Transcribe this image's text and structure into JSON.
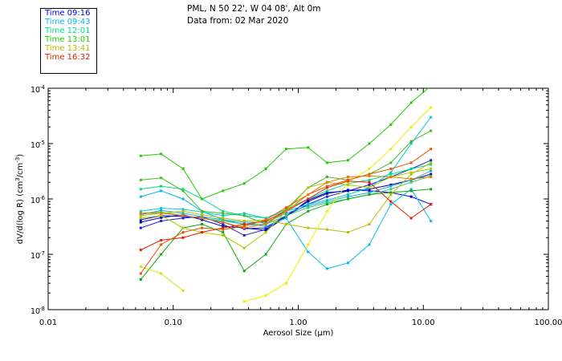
{
  "header": {
    "station": "PML, N 50 22', W 04 08', Alt 0m",
    "data_from": "Data from: 02 Mar 2020"
  },
  "legend": [
    {
      "label": "Time 09:16",
      "color": "#0000ee"
    },
    {
      "label": "Time 09:43",
      "color": "#00bbee"
    },
    {
      "label": "Time 12:01",
      "color": "#00dd88"
    },
    {
      "label": "Time 13:01",
      "color": "#22cc00"
    },
    {
      "label": "Time 13:41",
      "color": "#bbbb00"
    },
    {
      "label": "Time 16:32",
      "color": "#dd2200"
    }
  ],
  "chart_data": {
    "type": "line",
    "title": "PML, N 50 22', W 04 08', Alt 0m",
    "xlabel": "Aerosol Size (µm)",
    "ylabel": "dV/d(log R) (cm³/cm⁻³)",
    "xscale": "log",
    "yscale": "log",
    "xlim": [
      0.01,
      100
    ],
    "ylim": [
      1e-08,
      0.0001
    ],
    "x_ticks": [
      "0.01",
      "0.10",
      "1.00",
      "10.00",
      "100.00"
    ],
    "y_ticks": [
      "10⁻⁸",
      "10⁻⁷",
      "10⁻⁶",
      "10⁻⁵",
      "10⁻⁴"
    ],
    "y_tick_mantissa": "10",
    "y_tick_exponents": [
      "-8",
      "-7",
      "-6",
      "-5",
      "-4"
    ],
    "ylabel_parts": {
      "a": "dV/d(log R) (cm",
      "b": "3",
      "c": "/cm",
      "d": "-3",
      "e": ")"
    },
    "grid": false,
    "series": [
      {
        "name": "Time 09:16",
        "color": "#0000ee",
        "x": [
          0.055,
          0.08,
          0.12,
          0.17,
          0.25,
          0.37,
          0.55,
          0.8,
          1.2,
          1.7,
          2.5,
          3.7,
          5.5,
          8.0,
          11.5
        ],
        "y": [
          4.2e-07,
          5e-07,
          4.8e-07,
          4.5e-07,
          3.8e-07,
          2.9e-07,
          3e-07,
          5e-07,
          9e-07,
          1.25e-06,
          1.45e-06,
          1.4e-06,
          1.3e-06,
          1.1e-06,
          8e-07
        ]
      },
      {
        "name": "Time 09:16",
        "color": "#2222cc",
        "x": [
          0.055,
          0.08,
          0.12,
          0.17,
          0.25,
          0.37,
          0.55,
          0.8,
          1.2,
          1.7,
          2.5,
          3.7,
          5.5,
          8.0,
          11.5
        ],
        "y": [
          3e-07,
          4e-07,
          4.5e-07,
          4.8e-07,
          3.5e-07,
          2.2e-07,
          2.8e-07,
          5e-07,
          8e-07,
          1.1e-06,
          1.4e-06,
          1.8e-06,
          2.5e-06,
          3.5e-06,
          5e-06
        ]
      },
      {
        "name": "Time 09:16",
        "color": "#0000aa",
        "x": [
          0.055,
          0.08,
          0.12,
          0.17,
          0.25,
          0.37,
          0.55,
          0.8,
          1.2,
          1.7,
          2.5,
          3.7,
          5.5,
          8.0,
          11.5
        ],
        "y": [
          3.8e-07,
          4.6e-07,
          5.2e-07,
          4.2e-07,
          3.2e-07,
          3e-07,
          2.7e-07,
          4.8e-07,
          9.5e-07,
          1.3e-06,
          1.4e-06,
          1.5e-06,
          1.8e-06,
          2.2e-06,
          2.8e-06
        ]
      },
      {
        "name": "Time 09:43",
        "color": "#00bbee",
        "x": [
          0.055,
          0.08,
          0.12,
          0.17,
          0.25,
          0.37,
          0.55,
          0.8,
          1.2,
          1.7,
          2.5,
          3.7,
          5.5,
          8.0,
          11.5
        ],
        "y": [
          1.1e-06,
          1.4e-06,
          1e-06,
          6e-07,
          4.2e-07,
          3.5e-07,
          3.2e-07,
          4.5e-07,
          1.1e-07,
          5.5e-08,
          7e-08,
          1.5e-07,
          8e-07,
          1.5e-06,
          4e-07
        ]
      },
      {
        "name": "Time 09:43",
        "color": "#00cccc",
        "x": [
          0.055,
          0.08,
          0.12,
          0.17,
          0.25,
          0.37,
          0.55,
          0.8,
          1.2,
          1.7,
          2.5,
          3.7,
          5.5,
          8.0,
          11.5
        ],
        "y": [
          6e-07,
          6.8e-07,
          6.5e-07,
          5.8e-07,
          5e-07,
          5.5e-07,
          4.5e-07,
          6e-07,
          8e-07,
          9.5e-07,
          1.2e-06,
          1.6e-06,
          3e-06,
          1e-05,
          3e-05
        ]
      },
      {
        "name": "Time 09:43",
        "color": "#22aadd",
        "x": [
          0.055,
          0.08,
          0.12,
          0.17,
          0.25,
          0.37,
          0.55,
          0.8,
          1.2,
          1.7,
          2.5,
          3.7,
          5.5,
          8.0,
          11.5
        ],
        "y": [
          5.2e-07,
          6.2e-07,
          5.5e-07,
          4.8e-07,
          4.2e-07,
          3.8e-07,
          3.8e-07,
          5.5e-07,
          7.5e-07,
          9e-07,
          1.1e-06,
          1.3e-06,
          1.7e-06,
          2.2e-06,
          3.2e-06
        ]
      },
      {
        "name": "Time 12:01",
        "color": "#00dd88",
        "x": [
          0.055,
          0.08,
          0.12,
          0.17,
          0.25,
          0.37,
          0.55,
          0.8,
          1.2,
          1.7,
          2.5,
          3.7,
          5.5,
          8.0,
          11.5
        ],
        "y": [
          1.5e-06,
          1.7e-06,
          1.5e-06,
          1e-06,
          6e-07,
          5e-07,
          4.5e-07,
          6.5e-07,
          1e-06,
          1.4e-06,
          1.9e-06,
          2.2e-06,
          2.8e-06,
          3.5e-06,
          4.2e-06
        ]
      },
      {
        "name": "Time 12:01",
        "color": "#33cc66",
        "x": [
          0.055,
          0.08,
          0.12,
          0.17,
          0.25,
          0.37,
          0.55,
          0.8,
          1.2,
          1.7,
          2.5,
          3.7,
          5.5,
          8.0,
          11.5
        ],
        "y": [
          5.5e-07,
          5.8e-07,
          5e-07,
          4.5e-07,
          4e-07,
          3.5e-07,
          3.5e-07,
          5e-07,
          7e-07,
          8.5e-07,
          1e-06,
          1.2e-06,
          1.5e-06,
          2e-06,
          2.6e-06
        ]
      },
      {
        "name": "Time 13:01",
        "color": "#22cc00",
        "x": [
          0.055,
          0.08,
          0.12,
          0.17,
          0.25,
          0.37,
          0.55,
          0.8,
          1.2,
          1.7,
          2.5,
          3.7,
          5.5,
          8.0,
          11.5
        ],
        "y": [
          6e-06,
          6.5e-06,
          3.5e-06,
          1e-06,
          1.4e-06,
          1.9e-06,
          3.5e-06,
          8e-06,
          8.5e-06,
          4.5e-06,
          5e-06,
          1e-05,
          2.2e-05,
          5.5e-05,
          0.00011
        ]
      },
      {
        "name": "Time 13:01",
        "color": "#44bb22",
        "x": [
          0.055,
          0.08,
          0.12,
          0.17,
          0.25,
          0.37,
          0.55,
          0.8,
          1.2,
          1.7,
          2.5,
          3.7,
          5.5,
          8.0,
          11.5
        ],
        "y": [
          2.2e-06,
          2.4e-06,
          1.4e-06,
          6e-07,
          5.5e-07,
          5e-07,
          3.5e-07,
          6.5e-07,
          1.6e-06,
          2.5e-06,
          2.2e-06,
          2.8e-06,
          4.5e-06,
          1.1e-05,
          1.7e-05
        ]
      },
      {
        "name": "Time 13:01",
        "color": "#11aa11",
        "x": [
          0.055,
          0.08,
          0.12,
          0.17,
          0.25,
          0.37,
          0.55,
          0.8,
          1.2,
          1.7,
          2.5,
          3.7,
          5.5,
          8.0,
          11.5
        ],
        "y": [
          3.5e-08,
          1e-07,
          3e-07,
          3.5e-07,
          2.5e-07,
          5e-08,
          1e-07,
          3.5e-07,
          6e-07,
          8e-07,
          1e-06,
          1.2e-06,
          1.3e-06,
          1.4e-06,
          1.5e-06
        ]
      },
      {
        "name": "Time 13:41",
        "color": "#bbbb00",
        "x": [
          0.055,
          0.08,
          0.12,
          0.17,
          0.25,
          0.37,
          0.55,
          0.8,
          1.2,
          1.7,
          2.5,
          3.7,
          5.5,
          8.0,
          11.5
        ],
        "y": [
          5e-07,
          5.5e-07,
          6e-07,
          5.2e-07,
          4.5e-07,
          4e-07,
          4.2e-07,
          3.5e-07,
          3e-07,
          2.8e-07,
          2.5e-07,
          3.5e-07,
          1.2e-06,
          2.8e-06,
          4.5e-06
        ]
      },
      {
        "name": "Time 13:41",
        "color": "#dddd00",
        "x": [
          0.055,
          0.08,
          0.12
        ],
        "y": [
          6e-08,
          4.5e-08,
          2.2e-08
        ]
      },
      {
        "name": "Time 13:41",
        "color": "#eeee00",
        "x": [
          0.37,
          0.55,
          0.8,
          1.2,
          1.7,
          2.5,
          3.7,
          5.5,
          8.0,
          11.5
        ],
        "y": [
          1.4e-08,
          1.8e-08,
          3e-08,
          1.5e-07,
          6e-07,
          2e-06,
          3.5e-06,
          8e-06,
          2e-05,
          4.5e-05
        ]
      },
      {
        "name": "Time 13:41",
        "color": "#aacc00",
        "x": [
          0.055,
          0.08,
          0.12,
          0.17,
          0.25,
          0.37,
          0.55,
          0.8,
          1.2,
          1.7,
          2.5,
          3.7,
          5.5,
          8.0,
          11.5
        ],
        "y": [
          4.5e-07,
          5e-07,
          3e-07,
          2.5e-07,
          2.2e-07,
          1.3e-07,
          2.5e-07,
          6e-07,
          1.6e-06,
          2e-06,
          1.8e-06,
          1.6e-06,
          2.5e-06,
          3e-06,
          3.5e-06
        ]
      },
      {
        "name": "Time 16:32",
        "color": "#dd2200",
        "x": [
          0.055,
          0.08,
          0.12,
          0.17,
          0.25,
          0.37,
          0.55,
          0.8,
          1.2,
          1.7,
          2.5,
          3.7,
          5.5,
          8.0,
          11.5
        ],
        "y": [
          1.2e-07,
          1.8e-07,
          2e-07,
          2.5e-07,
          3e-07,
          3.5e-07,
          4e-07,
          6e-07,
          1e-06,
          1.6e-06,
          2.1e-06,
          2e-06,
          9e-07,
          4.5e-07,
          8e-07
        ]
      },
      {
        "name": "Time 16:32",
        "color": "#ee5500",
        "x": [
          0.055,
          0.08,
          0.12,
          0.17,
          0.25,
          0.37,
          0.55,
          0.8,
          1.2,
          1.7,
          2.5,
          3.7,
          5.5,
          8.0,
          11.5
        ],
        "y": [
          4.5e-08,
          1.5e-07,
          2.5e-07,
          3e-07,
          2.8e-07,
          3.2e-07,
          4.2e-07,
          7e-07,
          1.2e-06,
          1.7e-06,
          2.2e-06,
          2.8e-06,
          3.5e-06,
          4.5e-06,
          8e-06
        ]
      },
      {
        "name": "Time 16:32",
        "color": "#ee7700",
        "x": [
          0.055,
          0.08,
          0.12,
          0.17,
          0.25,
          0.37,
          0.55,
          0.8,
          1.2,
          1.7,
          2.5,
          3.7,
          5.5,
          8.0,
          11.5
        ],
        "y": [
          5.5e-07,
          5.5e-07,
          5e-07,
          4.5e-07,
          3.8e-07,
          3e-07,
          3.5e-07,
          6e-07,
          1.2e-06,
          2e-06,
          2.5e-06,
          2.6e-06,
          2.5e-06,
          2.3e-06,
          2.5e-06
        ]
      }
    ]
  }
}
